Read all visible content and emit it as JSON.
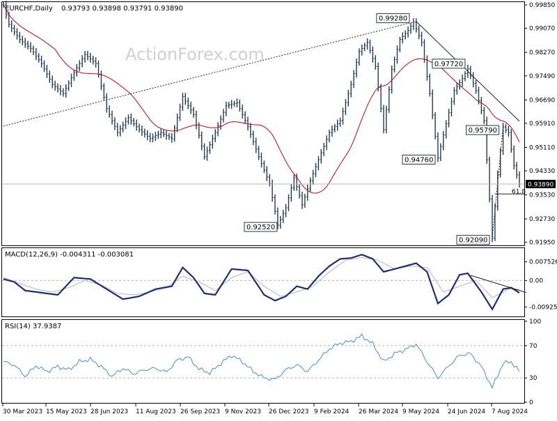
{
  "header": {
    "symbol": "EURCHF,Daily",
    "ohlc": "0.93793 0.93898 0.93791 0.93890",
    "watermark": "ActionForex.com"
  },
  "chart_data": [
    {
      "type": "bar",
      "name": "price",
      "y_ticks": [
        "0.99850",
        "0.99070",
        "0.98270",
        "0.97490",
        "0.96690",
        "0.95910",
        "0.95110",
        "0.94330",
        "0.93530",
        "0.92730",
        "0.91950"
      ],
      "ylim": [
        0.9185,
        0.9992
      ],
      "current_price": 0.9389,
      "current_label": "0.93890",
      "fib_label": "61.8",
      "fib_level": 0.9356,
      "annotations": [
        {
          "label": "0.99280",
          "value": 0.9928,
          "idx": 151
        },
        {
          "label": "0.97720",
          "value": 0.9772,
          "idx": 171
        },
        {
          "label": "0.94760",
          "value": 0.9476,
          "idx": 160
        },
        {
          "label": "0.95790",
          "value": 0.9579,
          "idx": 184
        },
        {
          "label": "0.92520",
          "value": 0.9252,
          "idx": 101
        },
        {
          "label": "0.92090",
          "value": 0.9209,
          "idx": 180
        }
      ],
      "ma_period": 20,
      "anchors": [
        [
          0,
          0.9985
        ],
        [
          2,
          0.992
        ],
        [
          6,
          0.987
        ],
        [
          10,
          0.984
        ],
        [
          14,
          0.979
        ],
        [
          18,
          0.972
        ],
        [
          22,
          0.969
        ],
        [
          26,
          0.976
        ],
        [
          30,
          0.982
        ],
        [
          34,
          0.979
        ],
        [
          38,
          0.964
        ],
        [
          42,
          0.956
        ],
        [
          46,
          0.961
        ],
        [
          50,
          0.957
        ],
        [
          54,
          0.954
        ],
        [
          58,
          0.956
        ],
        [
          62,
          0.954
        ],
        [
          66,
          0.968
        ],
        [
          70,
          0.962
        ],
        [
          74,
          0.948
        ],
        [
          78,
          0.956
        ],
        [
          82,
          0.965
        ],
        [
          86,
          0.966
        ],
        [
          90,
          0.958
        ],
        [
          94,
          0.948
        ],
        [
          98,
          0.939
        ],
        [
          101,
          0.9252
        ],
        [
          104,
          0.931
        ],
        [
          107,
          0.941
        ],
        [
          110,
          0.932
        ],
        [
          113,
          0.94
        ],
        [
          116,
          0.947
        ],
        [
          120,
          0.956
        ],
        [
          124,
          0.96
        ],
        [
          128,
          0.972
        ],
        [
          131,
          0.983
        ],
        [
          134,
          0.986
        ],
        [
          137,
          0.978
        ],
        [
          140,
          0.957
        ],
        [
          143,
          0.977
        ],
        [
          146,
          0.987
        ],
        [
          149,
          0.99
        ],
        [
          151,
          0.9928
        ],
        [
          154,
          0.986
        ],
        [
          157,
          0.969
        ],
        [
          160,
          0.9476
        ],
        [
          163,
          0.959
        ],
        [
          166,
          0.97
        ],
        [
          169,
          0.974
        ],
        [
          171,
          0.9772
        ],
        [
          174,
          0.97
        ],
        [
          177,
          0.96
        ],
        [
          180,
          0.9209
        ],
        [
          182,
          0.942
        ],
        [
          184,
          0.9579
        ],
        [
          186,
          0.956
        ],
        [
          188,
          0.945
        ],
        [
          190,
          0.9389
        ]
      ]
    },
    {
      "type": "line",
      "name": "macd",
      "title": "MACD(12,26,9) -0.004311 -0.003081",
      "y_ticks": [
        "0.007526",
        "0.00",
        "-0.009252"
      ],
      "ylim": [
        -0.0125,
        0.011
      ],
      "series": [
        {
          "values": [
            [
              0,
              0.0005
            ],
            [
              4,
              -0.0005
            ],
            [
              8,
              -0.0035
            ],
            [
              12,
              -0.004
            ],
            [
              16,
              -0.0045
            ],
            [
              20,
              -0.005
            ],
            [
              26,
              0.001
            ],
            [
              32,
              0.0005
            ],
            [
              38,
              -0.003
            ],
            [
              44,
              -0.0065
            ],
            [
              50,
              -0.0055
            ],
            [
              56,
              -0.003
            ],
            [
              62,
              -0.002
            ],
            [
              66,
              0.0045
            ],
            [
              70,
              0.001
            ],
            [
              74,
              -0.0045
            ],
            [
              78,
              -0.005
            ],
            [
              84,
              0.004
            ],
            [
              90,
              0.0035
            ],
            [
              96,
              -0.005
            ],
            [
              100,
              -0.007
            ],
            [
              104,
              -0.0055
            ],
            [
              108,
              -0.002
            ],
            [
              112,
              -0.003
            ],
            [
              116,
              0.0015
            ],
            [
              120,
              0.005
            ],
            [
              124,
              0.0075
            ],
            [
              128,
              0.0078
            ],
            [
              132,
              0.009
            ],
            [
              136,
              0.0075
            ],
            [
              140,
              0.003
            ],
            [
              144,
              0.004
            ],
            [
              148,
              0.005
            ],
            [
              152,
              0.006
            ],
            [
              156,
              0.003
            ],
            [
              160,
              -0.008
            ],
            [
              164,
              -0.005
            ],
            [
              168,
              0.002
            ],
            [
              171,
              0.0025
            ],
            [
              176,
              -0.004
            ],
            [
              180,
              -0.01
            ],
            [
              184,
              -0.003
            ],
            [
              187,
              -0.0025
            ],
            [
              190,
              -0.0043
            ]
          ]
        },
        {
          "values": [
            [
              0,
              0.001
            ],
            [
              6,
              -0.001
            ],
            [
              12,
              -0.003
            ],
            [
              18,
              -0.004
            ],
            [
              24,
              -0.0025
            ],
            [
              30,
              0.0
            ],
            [
              36,
              -0.0015
            ],
            [
              42,
              -0.0045
            ],
            [
              48,
              -0.005
            ],
            [
              54,
              -0.004
            ],
            [
              60,
              -0.0025
            ],
            [
              66,
              0.0015
            ],
            [
              72,
              -0.0005
            ],
            [
              78,
              -0.0035
            ],
            [
              84,
              0.001
            ],
            [
              90,
              0.003
            ],
            [
              96,
              -0.002
            ],
            [
              102,
              -0.0055
            ],
            [
              108,
              -0.004
            ],
            [
              114,
              -0.002
            ],
            [
              120,
              0.003
            ],
            [
              126,
              0.007
            ],
            [
              132,
              0.008
            ],
            [
              138,
              0.007
            ],
            [
              144,
              0.004
            ],
            [
              150,
              0.005
            ],
            [
              156,
              0.0045
            ],
            [
              162,
              -0.004
            ],
            [
              168,
              -0.002
            ],
            [
              174,
              0.0
            ],
            [
              180,
              -0.006
            ],
            [
              186,
              -0.003
            ],
            [
              190,
              -0.0031
            ]
          ]
        }
      ],
      "trendline": [
        [
          172,
          0.0018
        ],
        [
          190,
          -0.0042
        ]
      ]
    },
    {
      "type": "line",
      "name": "rsi",
      "title": "RSI(14) 37.9387",
      "y_ticks": [
        "100",
        "70",
        "30",
        "0"
      ],
      "ylim": [
        0,
        100
      ],
      "levels": [
        70,
        30
      ],
      "series": [
        {
          "values": [
            [
              0,
              50
            ],
            [
              4,
              46
            ],
            [
              8,
              32
            ],
            [
              12,
              45
            ],
            [
              16,
              38
            ],
            [
              20,
              44
            ],
            [
              24,
              40
            ],
            [
              28,
              50
            ],
            [
              32,
              53
            ],
            [
              36,
              44
            ],
            [
              40,
              32
            ],
            [
              44,
              42
            ],
            [
              48,
              35
            ],
            [
              52,
              40
            ],
            [
              56,
              42
            ],
            [
              60,
              37
            ],
            [
              64,
              52
            ],
            [
              68,
              56
            ],
            [
              72,
              41
            ],
            [
              76,
              36
            ],
            [
              80,
              48
            ],
            [
              84,
              58
            ],
            [
              88,
              50
            ],
            [
              92,
              38
            ],
            [
              96,
              30
            ],
            [
              100,
              28
            ],
            [
              104,
              40
            ],
            [
              108,
              46
            ],
            [
              112,
              38
            ],
            [
              116,
              52
            ],
            [
              120,
              66
            ],
            [
              124,
              73
            ],
            [
              128,
              75
            ],
            [
              132,
              82
            ],
            [
              136,
              72
            ],
            [
              140,
              50
            ],
            [
              144,
              60
            ],
            [
              148,
              65
            ],
            [
              152,
              72
            ],
            [
              156,
              50
            ],
            [
              160,
              30
            ],
            [
              164,
              45
            ],
            [
              168,
              58
            ],
            [
              172,
              60
            ],
            [
              176,
              44
            ],
            [
              180,
              18
            ],
            [
              184,
              48
            ],
            [
              187,
              50
            ],
            [
              190,
              38
            ]
          ]
        }
      ]
    }
  ],
  "x_labels": [
    "30 Mar 2023",
    "15 May 2023",
    "28 Jun 2023",
    "11 Aug 2023",
    "26 Sep 2023",
    "9 Nov 2023",
    "26 Dec 2023",
    "9 Feb 2024",
    "26 Mar 2024",
    "9 May 2024",
    "24 Jun 2024",
    "7 Aug 2024"
  ],
  "colors": {
    "candle": "#1f3a56",
    "ma": "#d40000",
    "macd": "#1a2e7a",
    "signal": "#b5b5b5",
    "rsi": "#3d8fe0",
    "grid": "#b5b5b5",
    "axis": "#000000"
  }
}
